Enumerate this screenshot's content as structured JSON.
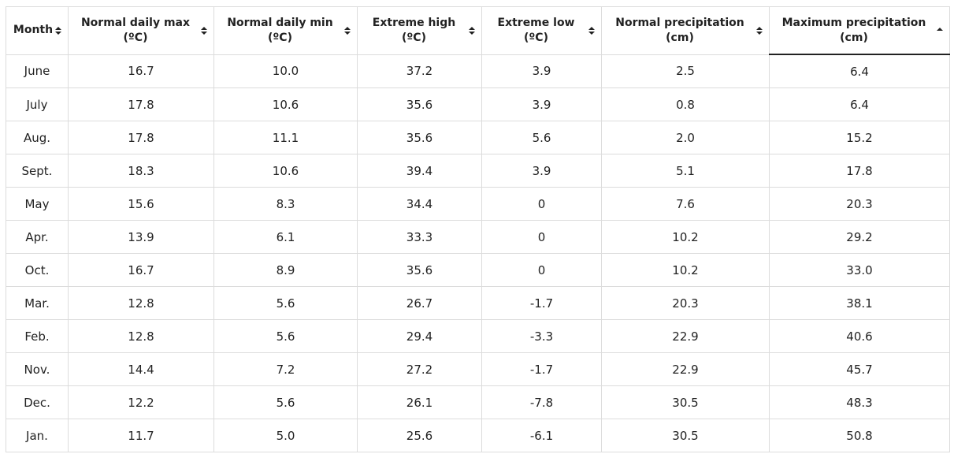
{
  "table": {
    "columns": [
      {
        "key": "month",
        "line1": "Month",
        "line2": "",
        "sort": "both"
      },
      {
        "key": "max",
        "line1": "Normal daily max",
        "line2": "(ºC)",
        "sort": "both"
      },
      {
        "key": "min",
        "line1": "Normal daily min",
        "line2": "(ºC)",
        "sort": "both"
      },
      {
        "key": "xhigh",
        "line1": "Extreme high",
        "line2": "(ºC)",
        "sort": "both"
      },
      {
        "key": "xlow",
        "line1": "Extreme low",
        "line2": "(ºC)",
        "sort": "both"
      },
      {
        "key": "nprec",
        "line1": "Normal precipitation",
        "line2": "(cm)",
        "sort": "both"
      },
      {
        "key": "mprec",
        "line1": "Maximum precipitation",
        "line2": "(cm)",
        "sort": "asc"
      }
    ],
    "rows": [
      [
        "June",
        "16.7",
        "10.0",
        "37.2",
        "3.9",
        "2.5",
        "6.4"
      ],
      [
        "July",
        "17.8",
        "10.6",
        "35.6",
        "3.9",
        "0.8",
        "6.4"
      ],
      [
        "Aug.",
        "17.8",
        "11.1",
        "35.6",
        "5.6",
        "2.0",
        "15.2"
      ],
      [
        "Sept.",
        "18.3",
        "10.6",
        "39.4",
        "3.9",
        "5.1",
        "17.8"
      ],
      [
        "May",
        "15.6",
        "8.3",
        "34.4",
        "0",
        "7.6",
        "20.3"
      ],
      [
        "Apr.",
        "13.9",
        "6.1",
        "33.3",
        "0",
        "10.2",
        "29.2"
      ],
      [
        "Oct.",
        "16.7",
        "8.9",
        "35.6",
        "0",
        "10.2",
        "33.0"
      ],
      [
        "Mar.",
        "12.8",
        "5.6",
        "26.7",
        "-1.7",
        "20.3",
        "38.1"
      ],
      [
        "Feb.",
        "12.8",
        "5.6",
        "29.4",
        "-3.3",
        "22.9",
        "40.6"
      ],
      [
        "Nov.",
        "14.4",
        "7.2",
        "27.2",
        "-1.7",
        "22.9",
        "45.7"
      ],
      [
        "Dec.",
        "12.2",
        "5.6",
        "26.1",
        "-7.8",
        "30.5",
        "48.3"
      ],
      [
        "Jan.",
        "11.7",
        "5.0",
        "25.6",
        "-6.1",
        "30.5",
        "50.8"
      ]
    ]
  }
}
